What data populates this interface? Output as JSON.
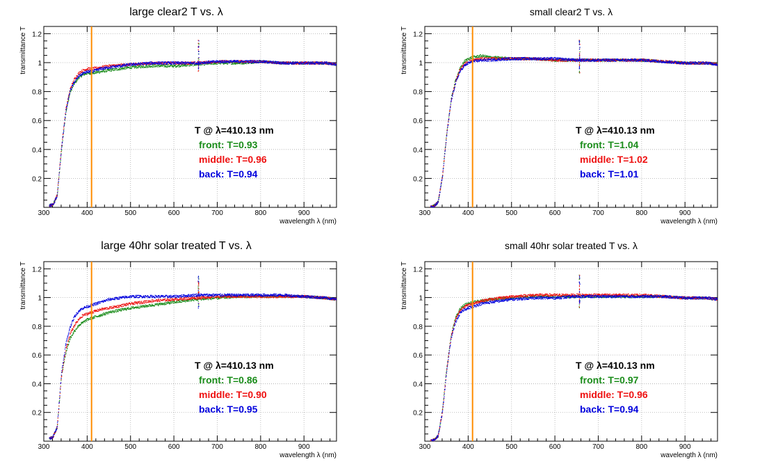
{
  "colors": {
    "front": "#1a8c1a",
    "middle": "#ee1111",
    "back": "#0000dd",
    "marker_line": "#ff8c00",
    "axis": "#000000",
    "grid": "#aaaaaa"
  },
  "chart_data": [
    {
      "type": "scatter",
      "title": "large clear2 T vs. λ",
      "xlabel": "wavelength λ (nm)",
      "ylabel": "transmittance T",
      "xlim": [
        300,
        975
      ],
      "ylim": [
        0,
        1.25
      ],
      "xticks": [
        300,
        400,
        500,
        600,
        700,
        800,
        900
      ],
      "yticks": [
        0.2,
        0.4,
        0.6,
        0.8,
        1,
        1.2
      ],
      "grid": true,
      "marker_wavelength": 410.13,
      "annotation": {
        "header": "T @ λ=410.13 nm",
        "front": "front: T=0.93",
        "middle": "middle: T=0.96",
        "back": "back: T=0.94"
      },
      "series": [
        {
          "name": "front",
          "x": [
            300,
            320,
            330,
            340,
            350,
            360,
            370,
            380,
            390,
            400,
            410,
            430,
            450,
            500,
            550,
            600,
            650,
            700,
            750,
            800,
            850,
            900,
            950,
            975
          ],
          "y": [
            0.01,
            0.02,
            0.08,
            0.4,
            0.66,
            0.8,
            0.86,
            0.9,
            0.92,
            0.93,
            0.93,
            0.94,
            0.95,
            0.97,
            0.98,
            0.98,
            0.99,
            1.0,
            1.0,
            1.01,
            1.0,
            1.0,
            1.0,
            0.99
          ]
        },
        {
          "name": "middle",
          "x": [
            300,
            320,
            330,
            340,
            350,
            360,
            370,
            380,
            390,
            400,
            410,
            430,
            450,
            500,
            550,
            600,
            650,
            700,
            750,
            800,
            850,
            900,
            950,
            975
          ],
          "y": [
            0.01,
            0.02,
            0.09,
            0.42,
            0.68,
            0.82,
            0.89,
            0.93,
            0.95,
            0.96,
            0.96,
            0.97,
            0.98,
            0.99,
            1.0,
            1.0,
            1.0,
            1.01,
            1.01,
            1.01,
            1.0,
            1.0,
            1.0,
            0.99
          ]
        },
        {
          "name": "back",
          "x": [
            300,
            320,
            330,
            340,
            350,
            360,
            370,
            380,
            390,
            400,
            410,
            430,
            450,
            500,
            550,
            600,
            650,
            700,
            750,
            800,
            850,
            900,
            950,
            975
          ],
          "y": [
            0.01,
            0.02,
            0.08,
            0.41,
            0.67,
            0.81,
            0.87,
            0.91,
            0.93,
            0.94,
            0.94,
            0.96,
            0.97,
            0.99,
            1.0,
            1.0,
            1.0,
            1.01,
            1.01,
            1.01,
            1.0,
            1.0,
            1.0,
            0.99
          ]
        }
      ]
    },
    {
      "type": "scatter",
      "title": "small clear2 T vs. λ",
      "xlabel": "wavelength λ (nm)",
      "ylabel": "transmittance T",
      "xlim": [
        300,
        975
      ],
      "ylim": [
        0,
        1.25
      ],
      "xticks": [
        300,
        400,
        500,
        600,
        700,
        800,
        900
      ],
      "yticks": [
        0.2,
        0.4,
        0.6,
        0.8,
        1,
        1.2
      ],
      "grid": true,
      "marker_wavelength": 410.13,
      "annotation": {
        "header": "T @ λ=410.13 nm",
        "front": "front: T=1.04",
        "middle": "middle: T=1.02",
        "back": "back: T=1.01"
      },
      "series": [
        {
          "name": "front",
          "x": [
            300,
            320,
            330,
            340,
            350,
            360,
            370,
            380,
            390,
            400,
            410,
            430,
            450,
            500,
            550,
            600,
            650,
            700,
            750,
            800,
            850,
            900,
            950,
            975
          ],
          "y": [
            0.0,
            0.01,
            0.04,
            0.22,
            0.52,
            0.75,
            0.88,
            0.96,
            1.01,
            1.03,
            1.04,
            1.05,
            1.04,
            1.03,
            1.03,
            1.02,
            1.02,
            1.02,
            1.02,
            1.02,
            1.01,
            1.0,
            1.0,
            0.99
          ]
        },
        {
          "name": "middle",
          "x": [
            300,
            320,
            330,
            340,
            350,
            360,
            370,
            380,
            390,
            400,
            410,
            430,
            450,
            500,
            550,
            600,
            650,
            700,
            750,
            800,
            850,
            900,
            950,
            975
          ],
          "y": [
            0.0,
            0.01,
            0.04,
            0.22,
            0.52,
            0.74,
            0.87,
            0.95,
            0.99,
            1.01,
            1.02,
            1.03,
            1.03,
            1.03,
            1.03,
            1.02,
            1.02,
            1.02,
            1.02,
            1.02,
            1.01,
            1.0,
            1.0,
            0.99
          ]
        },
        {
          "name": "back",
          "x": [
            300,
            320,
            330,
            340,
            350,
            360,
            370,
            380,
            390,
            400,
            410,
            430,
            450,
            500,
            550,
            600,
            650,
            700,
            750,
            800,
            850,
            900,
            950,
            975
          ],
          "y": [
            0.0,
            0.01,
            0.04,
            0.22,
            0.51,
            0.74,
            0.86,
            0.94,
            0.98,
            1.0,
            1.01,
            1.02,
            1.02,
            1.03,
            1.03,
            1.03,
            1.02,
            1.02,
            1.02,
            1.02,
            1.01,
            1.0,
            1.0,
            0.99
          ]
        }
      ]
    },
    {
      "type": "scatter",
      "title": "large 40hr solar treated T vs. λ",
      "xlabel": "wavelength λ (nm)",
      "ylabel": "transmittance T",
      "xlim": [
        300,
        975
      ],
      "ylim": [
        0,
        1.25
      ],
      "xticks": [
        300,
        400,
        500,
        600,
        700,
        800,
        900
      ],
      "yticks": [
        0.2,
        0.4,
        0.6,
        0.8,
        1,
        1.2
      ],
      "grid": true,
      "marker_wavelength": 410.13,
      "annotation": {
        "header": "T @ λ=410.13 nm",
        "front": "front: T=0.86",
        "middle": "middle: T=0.90",
        "back": "back: T=0.95"
      },
      "series": [
        {
          "name": "front",
          "x": [
            300,
            320,
            330,
            340,
            350,
            360,
            370,
            380,
            390,
            400,
            410,
            430,
            450,
            500,
            550,
            600,
            650,
            700,
            750,
            800,
            850,
            900,
            950,
            975
          ],
          "y": [
            0.01,
            0.03,
            0.1,
            0.46,
            0.62,
            0.72,
            0.77,
            0.81,
            0.83,
            0.85,
            0.86,
            0.88,
            0.9,
            0.93,
            0.95,
            0.97,
            0.99,
            1.0,
            1.01,
            1.01,
            1.01,
            1.01,
            1.0,
            0.99
          ]
        },
        {
          "name": "middle",
          "x": [
            300,
            320,
            330,
            340,
            350,
            360,
            370,
            380,
            390,
            400,
            410,
            430,
            450,
            500,
            550,
            600,
            650,
            700,
            750,
            800,
            850,
            900,
            950,
            975
          ],
          "y": [
            0.01,
            0.03,
            0.1,
            0.46,
            0.64,
            0.75,
            0.81,
            0.85,
            0.88,
            0.89,
            0.9,
            0.92,
            0.93,
            0.96,
            0.98,
            0.99,
            1.0,
            1.01,
            1.01,
            1.01,
            1.01,
            1.01,
            1.0,
            0.99
          ]
        },
        {
          "name": "back",
          "x": [
            300,
            320,
            330,
            340,
            350,
            360,
            370,
            380,
            390,
            400,
            410,
            430,
            450,
            500,
            550,
            600,
            650,
            700,
            750,
            800,
            850,
            900,
            950,
            975
          ],
          "y": [
            0.01,
            0.03,
            0.1,
            0.48,
            0.68,
            0.8,
            0.87,
            0.91,
            0.93,
            0.94,
            0.95,
            0.97,
            0.99,
            1.01,
            1.01,
            1.01,
            1.02,
            1.02,
            1.02,
            1.02,
            1.02,
            1.01,
            1.0,
            0.99
          ]
        }
      ]
    },
    {
      "type": "scatter",
      "title": "small 40hr solar treated T vs. λ",
      "xlabel": "wavelength λ (nm)",
      "ylabel": "transmittance T",
      "xlim": [
        300,
        975
      ],
      "ylim": [
        0,
        1.25
      ],
      "xticks": [
        300,
        400,
        500,
        600,
        700,
        800,
        900
      ],
      "yticks": [
        0.2,
        0.4,
        0.6,
        0.8,
        1,
        1.2
      ],
      "grid": true,
      "marker_wavelength": 410.13,
      "annotation": {
        "header": "T @ λ=410.13 nm",
        "front": "front: T=0.97",
        "middle": "middle: T=0.96",
        "back": "back: T=0.94"
      },
      "series": [
        {
          "name": "front",
          "x": [
            300,
            320,
            330,
            340,
            350,
            360,
            370,
            380,
            390,
            400,
            410,
            430,
            450,
            500,
            550,
            600,
            650,
            700,
            750,
            800,
            850,
            900,
            950,
            975
          ],
          "y": [
            0.0,
            0.01,
            0.04,
            0.22,
            0.52,
            0.74,
            0.86,
            0.92,
            0.95,
            0.96,
            0.97,
            0.98,
            0.99,
            1.0,
            1.01,
            1.01,
            1.01,
            1.01,
            1.01,
            1.01,
            1.01,
            1.0,
            1.0,
            0.99
          ]
        },
        {
          "name": "middle",
          "x": [
            300,
            320,
            330,
            340,
            350,
            360,
            370,
            380,
            390,
            400,
            410,
            430,
            450,
            500,
            550,
            600,
            650,
            700,
            750,
            800,
            850,
            900,
            950,
            975
          ],
          "y": [
            0.0,
            0.01,
            0.04,
            0.21,
            0.51,
            0.73,
            0.85,
            0.91,
            0.94,
            0.95,
            0.96,
            0.98,
            0.99,
            1.01,
            1.02,
            1.02,
            1.02,
            1.02,
            1.02,
            1.02,
            1.01,
            1.0,
            1.0,
            0.99
          ]
        },
        {
          "name": "back",
          "x": [
            300,
            320,
            330,
            340,
            350,
            360,
            370,
            380,
            390,
            400,
            410,
            430,
            450,
            500,
            550,
            600,
            650,
            700,
            750,
            800,
            850,
            900,
            950,
            975
          ],
          "y": [
            0.0,
            0.01,
            0.04,
            0.21,
            0.5,
            0.72,
            0.83,
            0.89,
            0.92,
            0.93,
            0.94,
            0.96,
            0.97,
            0.99,
            1.0,
            1.0,
            1.01,
            1.01,
            1.01,
            1.01,
            1.01,
            1.0,
            1.0,
            0.99
          ]
        }
      ]
    }
  ]
}
